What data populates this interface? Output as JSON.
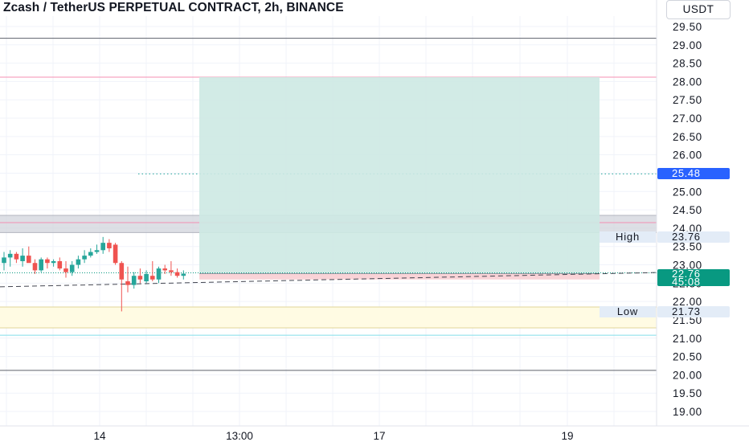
{
  "header": {
    "title": "Zcash / TetherUS PERPETUAL CONTRACT, 2h, BINANCE",
    "currency": "USDT"
  },
  "price_tags": {
    "target": "25.48",
    "last_price": "22.76",
    "countdown": "45:08",
    "high_label": "High",
    "high_value": "23.76",
    "low_label": "Low",
    "low_value": "21.73"
  },
  "colors": {
    "up": "#26a69a",
    "down": "#ef5350",
    "target_tag": "#2962ff",
    "last_price_tag": "#089981",
    "profit_zone": "#cde9e3",
    "loss_zone": "#f9d3d7",
    "low_band": "#fffbe3"
  },
  "chart_data": {
    "type": "candlestick",
    "title": "Zcash / TetherUS PERPETUAL CONTRACT, 2h, BINANCE",
    "y_axis_ticks": [
      "19.00",
      "19.50",
      "20.00",
      "20.50",
      "21.00",
      "21.50",
      "22.00",
      "22.50",
      "23.00",
      "23.50",
      "24.00",
      "24.50",
      "25.00",
      "25.50",
      "26.00",
      "26.50",
      "27.00",
      "27.50",
      "28.00",
      "28.50",
      "29.00",
      "29.50"
    ],
    "x_axis_ticks": [
      "14",
      "13:00",
      "17",
      "19"
    ],
    "ylim": [
      18.9,
      29.8
    ],
    "candles": [
      {
        "o": 23.05,
        "h": 23.35,
        "l": 22.85,
        "c": 23.2
      },
      {
        "o": 23.2,
        "h": 23.4,
        "l": 22.95,
        "c": 23.3
      },
      {
        "o": 23.3,
        "h": 23.35,
        "l": 23.05,
        "c": 23.15
      },
      {
        "o": 23.1,
        "h": 23.45,
        "l": 22.95,
        "c": 23.25
      },
      {
        "o": 23.25,
        "h": 23.5,
        "l": 23.1,
        "c": 23.05
      },
      {
        "o": 23.05,
        "h": 23.15,
        "l": 22.75,
        "c": 22.85
      },
      {
        "o": 22.85,
        "h": 23.2,
        "l": 22.8,
        "c": 23.15
      },
      {
        "o": 23.15,
        "h": 23.2,
        "l": 22.9,
        "c": 23.05
      },
      {
        "o": 23.05,
        "h": 23.15,
        "l": 22.95,
        "c": 23.1
      },
      {
        "o": 23.1,
        "h": 23.2,
        "l": 22.85,
        "c": 22.9
      },
      {
        "o": 22.9,
        "h": 23.1,
        "l": 22.65,
        "c": 22.8
      },
      {
        "o": 22.8,
        "h": 23.1,
        "l": 22.7,
        "c": 23.0
      },
      {
        "o": 23.0,
        "h": 23.25,
        "l": 22.9,
        "c": 23.15
      },
      {
        "o": 23.15,
        "h": 23.4,
        "l": 23.05,
        "c": 23.25
      },
      {
        "o": 23.25,
        "h": 23.45,
        "l": 23.2,
        "c": 23.35
      },
      {
        "o": 23.35,
        "h": 23.55,
        "l": 23.3,
        "c": 23.4
      },
      {
        "o": 23.4,
        "h": 23.76,
        "l": 23.3,
        "c": 23.6
      },
      {
        "o": 23.6,
        "h": 23.7,
        "l": 23.35,
        "c": 23.45
      },
      {
        "o": 23.55,
        "h": 23.6,
        "l": 23.0,
        "c": 23.05
      },
      {
        "o": 23.05,
        "h": 23.1,
        "l": 21.73,
        "c": 22.6
      },
      {
        "o": 22.55,
        "h": 22.95,
        "l": 22.25,
        "c": 22.45
      },
      {
        "o": 22.45,
        "h": 22.8,
        "l": 22.35,
        "c": 22.7
      },
      {
        "o": 22.7,
        "h": 22.9,
        "l": 22.5,
        "c": 22.6
      },
      {
        "o": 22.55,
        "h": 22.85,
        "l": 22.5,
        "c": 22.75
      },
      {
        "o": 22.7,
        "h": 23.1,
        "l": 22.55,
        "c": 22.6
      },
      {
        "o": 22.6,
        "h": 22.95,
        "l": 22.5,
        "c": 22.9
      },
      {
        "o": 22.9,
        "h": 23.0,
        "l": 22.75,
        "c": 22.85
      },
      {
        "o": 22.85,
        "h": 23.1,
        "l": 22.7,
        "c": 22.8
      },
      {
        "o": 22.8,
        "h": 22.9,
        "l": 22.65,
        "c": 22.7
      },
      {
        "o": 22.7,
        "h": 22.85,
        "l": 22.6,
        "c": 22.76
      }
    ],
    "position": {
      "side": "long",
      "entry": 22.76,
      "target": 28.12,
      "stop": 22.6
    },
    "horizontal_lines": [
      {
        "price": 29.18,
        "color": "#5d606b"
      },
      {
        "price": 28.12,
        "color": "#f48fb1"
      },
      {
        "price": 25.48,
        "color": "#26a69a",
        "style": "dotted"
      },
      {
        "price": 24.15,
        "color": "#f48fb1"
      },
      {
        "price": 21.08,
        "color": "#80deea"
      },
      {
        "price": 20.12,
        "color": "#5d606b"
      }
    ],
    "zones": [
      {
        "from": 23.88,
        "to": 24.35,
        "color": "#d1d4dc"
      },
      {
        "from": 21.28,
        "to": 21.85,
        "color": "#fffbe3"
      }
    ],
    "trend_line": {
      "from": 22.4,
      "to": 22.79,
      "style": "dashed"
    },
    "high": 23.76,
    "low": 21.73
  }
}
